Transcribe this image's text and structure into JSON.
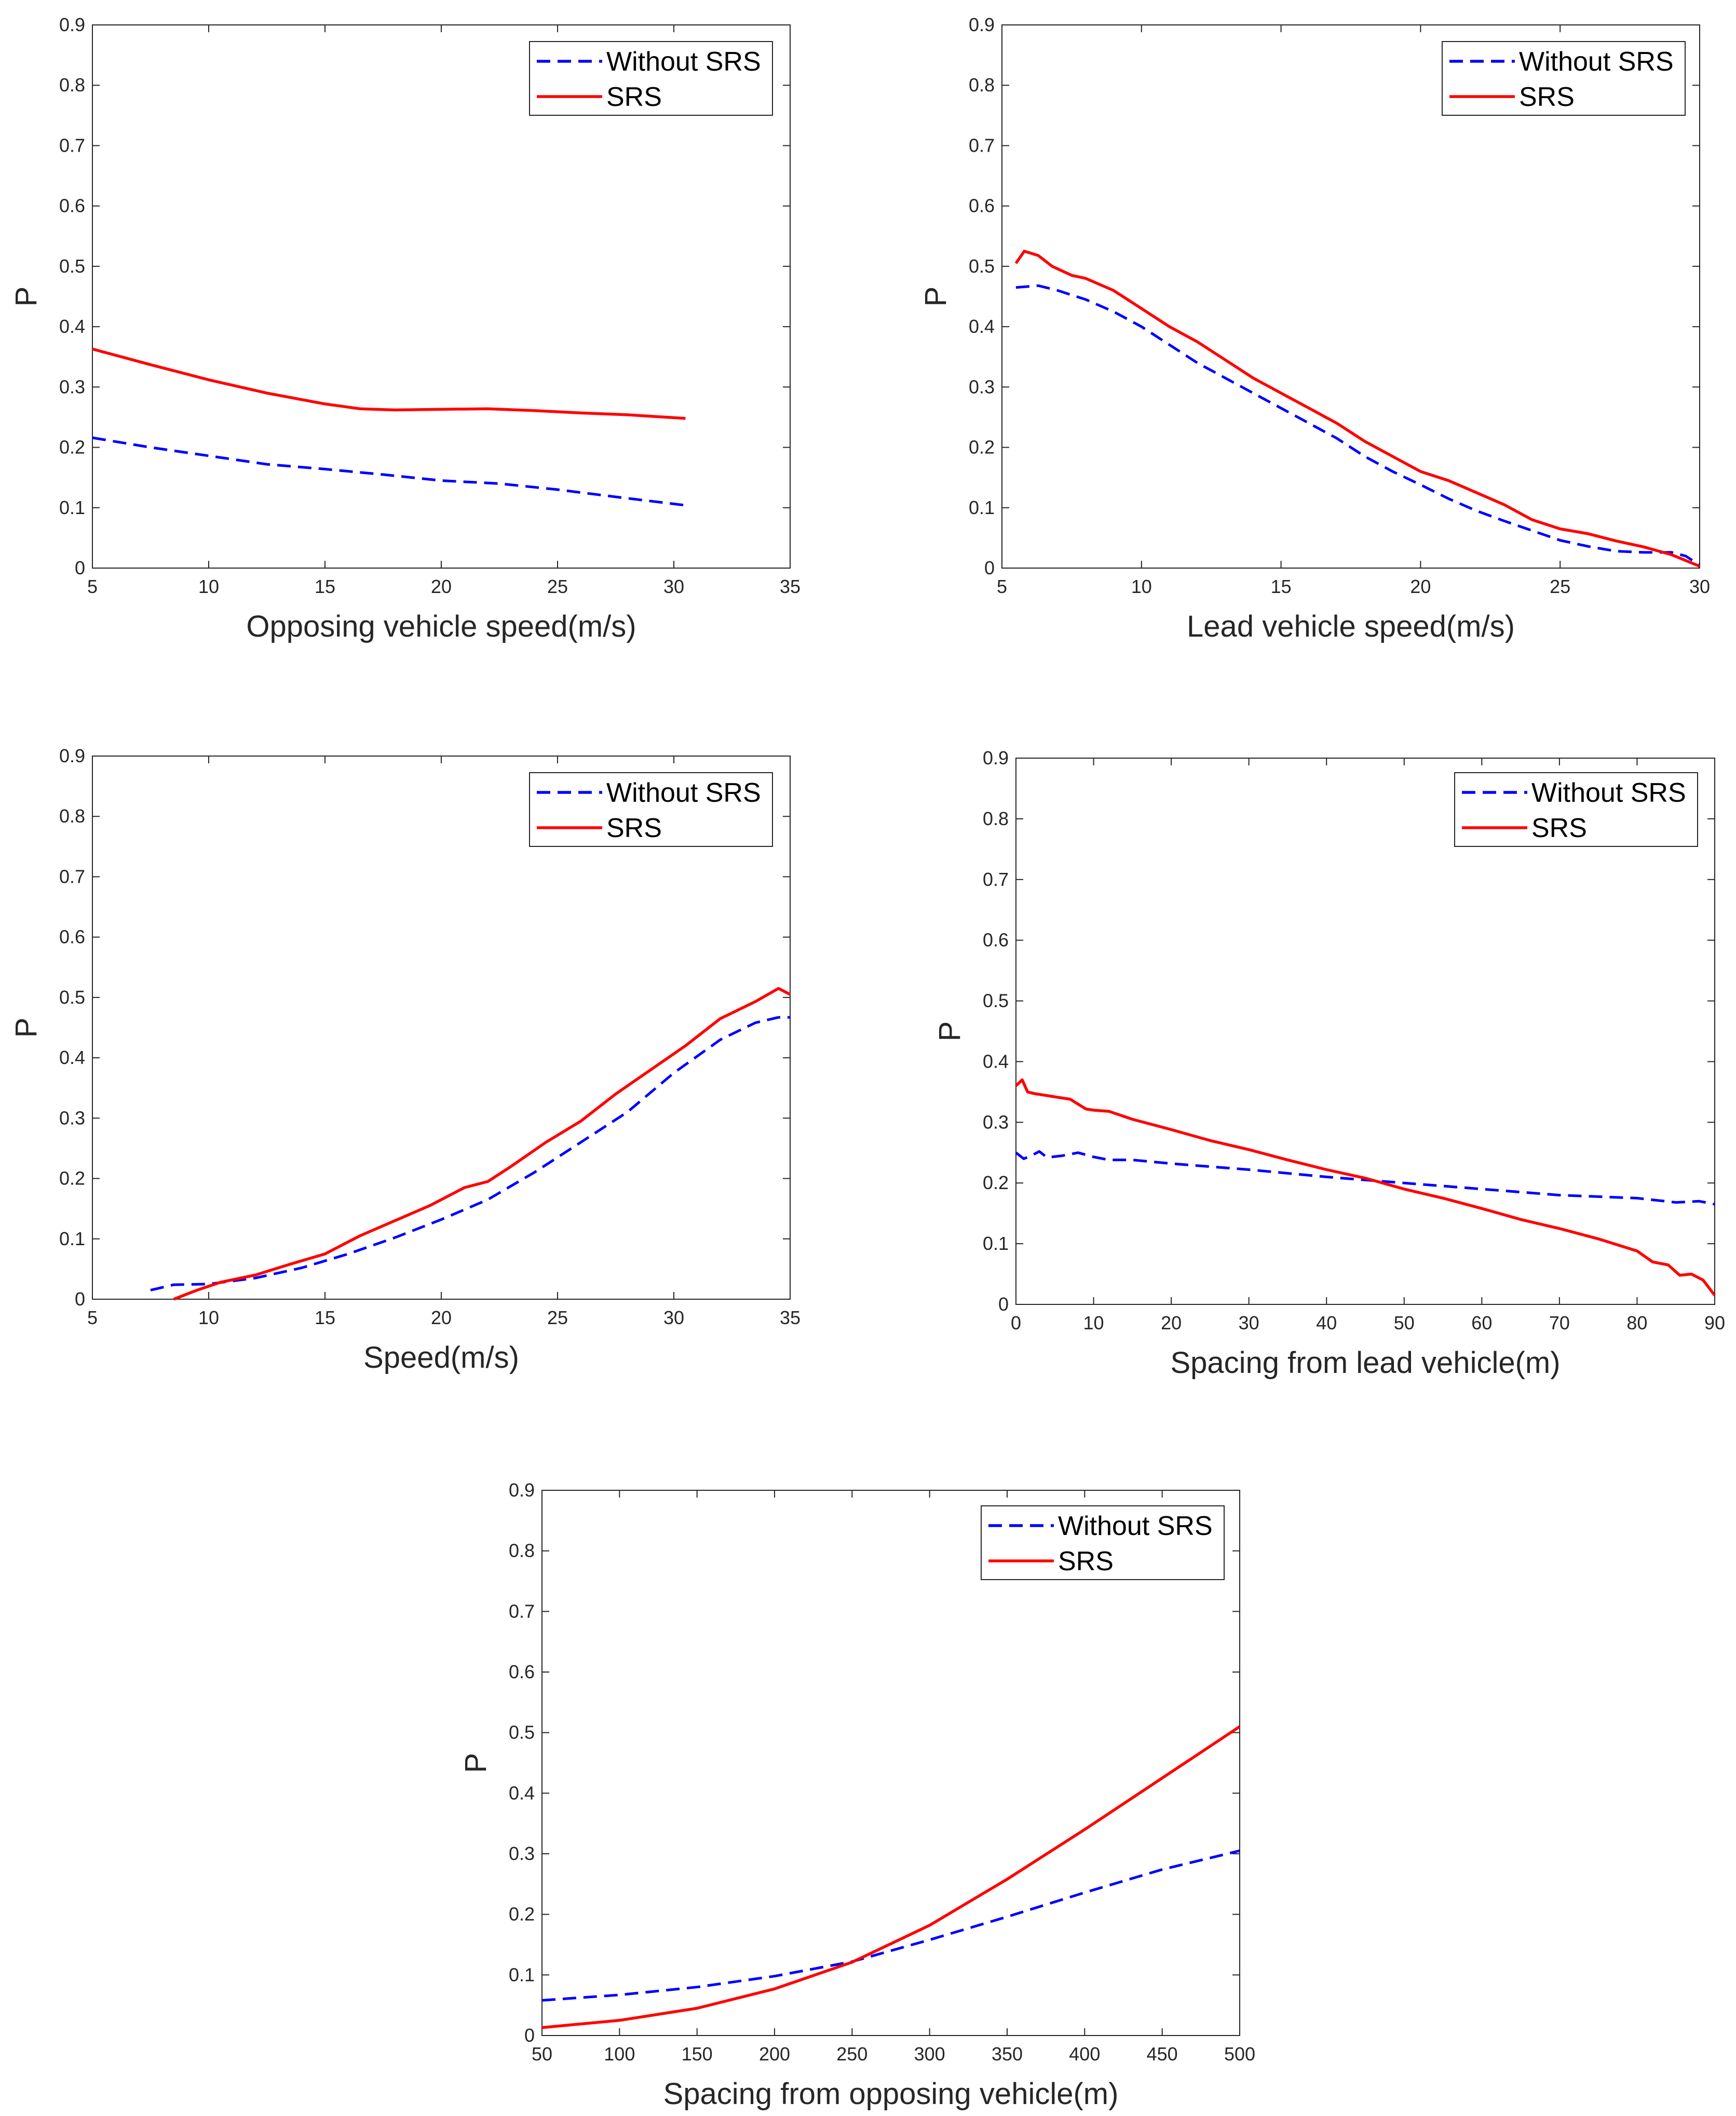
{
  "colors": {
    "without_srs": "#0000ff",
    "srs": "#ff0000",
    "axis": "#262626",
    "background": "#ffffff"
  },
  "chart_data": [
    {
      "id": "opposing-speed",
      "type": "line",
      "xlabel": "Opposing vehicle speed(m/s)",
      "ylabel": "P",
      "xlim": [
        5,
        35
      ],
      "ylim": [
        0,
        0.9
      ],
      "xticks": [
        "5",
        "10",
        "15",
        "20",
        "25",
        "30",
        "35"
      ],
      "yticks": [
        "0",
        "0.1",
        "0.2",
        "0.3",
        "0.4",
        "0.5",
        "0.6",
        "0.7",
        "0.8",
        "0.9"
      ],
      "legend_position": "top-right",
      "series": [
        {
          "name": "Without SRS",
          "style": "dashed",
          "x": [
            5,
            7.5,
            10,
            12.5,
            15,
            17.5,
            20,
            22.5,
            25,
            27.5,
            30.5
          ],
          "y": [
            0.216,
            0.2,
            0.186,
            0.172,
            0.164,
            0.155,
            0.145,
            0.14,
            0.13,
            0.118,
            0.104
          ]
        },
        {
          "name": "SRS",
          "style": "solid",
          "x": [
            5,
            7.5,
            10,
            12.5,
            15,
            16.5,
            18,
            20,
            22,
            24,
            26,
            28,
            30.5
          ],
          "y": [
            0.363,
            0.337,
            0.312,
            0.29,
            0.272,
            0.264,
            0.262,
            0.263,
            0.264,
            0.261,
            0.257,
            0.254,
            0.248
          ]
        }
      ]
    },
    {
      "id": "lead-speed",
      "type": "line",
      "xlabel": "Lead vehicle speed(m/s)",
      "ylabel": "P",
      "xlim": [
        5,
        30
      ],
      "ylim": [
        0,
        0.9
      ],
      "xticks": [
        "5",
        "10",
        "15",
        "20",
        "25",
        "30"
      ],
      "yticks": [
        "0",
        "0.1",
        "0.2",
        "0.3",
        "0.4",
        "0.5",
        "0.6",
        "0.7",
        "0.8",
        "0.9"
      ],
      "legend_position": "top-right",
      "series": [
        {
          "name": "Without SRS",
          "style": "dashed",
          "x": [
            5.5,
            6.3,
            7,
            8,
            9,
            10,
            11,
            12,
            13,
            14,
            15,
            16,
            17,
            18,
            19,
            20,
            21,
            22,
            23,
            24,
            25,
            26,
            27,
            28,
            29,
            29.5,
            30
          ],
          "y": [
            0.465,
            0.468,
            0.46,
            0.445,
            0.425,
            0.4,
            0.37,
            0.34,
            0.315,
            0.29,
            0.265,
            0.24,
            0.215,
            0.185,
            0.16,
            0.138,
            0.115,
            0.095,
            0.078,
            0.062,
            0.046,
            0.036,
            0.028,
            0.026,
            0.026,
            0.02,
            0.005
          ]
        },
        {
          "name": "SRS",
          "style": "solid",
          "x": [
            5.5,
            5.8,
            6.3,
            6.8,
            7.5,
            8,
            9,
            10,
            11,
            12,
            13,
            14,
            15,
            16,
            17,
            18,
            19,
            20,
            21,
            22,
            23,
            24,
            25,
            26,
            27,
            28,
            29,
            30
          ],
          "y": [
            0.505,
            0.525,
            0.518,
            0.5,
            0.485,
            0.48,
            0.46,
            0.43,
            0.4,
            0.375,
            0.345,
            0.315,
            0.29,
            0.265,
            0.24,
            0.21,
            0.185,
            0.16,
            0.145,
            0.125,
            0.105,
            0.08,
            0.065,
            0.057,
            0.045,
            0.035,
            0.022,
            0.003
          ]
        }
      ]
    },
    {
      "id": "speed",
      "type": "line",
      "xlabel": "Speed(m/s)",
      "ylabel": "P",
      "xlim": [
        5,
        35
      ],
      "ylim": [
        0,
        0.9
      ],
      "xticks": [
        "5",
        "10",
        "15",
        "20",
        "25",
        "30",
        "35"
      ],
      "yticks": [
        "0",
        "0.1",
        "0.2",
        "0.3",
        "0.4",
        "0.5",
        "0.6",
        "0.7",
        "0.8",
        "0.9"
      ],
      "legend_position": "top-right",
      "series": [
        {
          "name": "Without SRS",
          "style": "dashed",
          "x": [
            7.5,
            8.5,
            10,
            12,
            14,
            16,
            18,
            20,
            22,
            24,
            26,
            28,
            30,
            32,
            33.5,
            34.5,
            35
          ],
          "y": [
            0.015,
            0.024,
            0.025,
            0.035,
            0.052,
            0.075,
            0.102,
            0.132,
            0.165,
            0.21,
            0.26,
            0.31,
            0.375,
            0.43,
            0.458,
            0.467,
            0.467
          ]
        },
        {
          "name": "SRS",
          "style": "solid",
          "x": [
            8.5,
            9.5,
            10.5,
            12,
            13.5,
            15,
            16.5,
            18,
            19.5,
            21,
            22,
            23,
            24.5,
            26,
            27.5,
            29,
            30.5,
            32,
            33.5,
            34.5,
            35
          ],
          "y": [
            0.0,
            0.015,
            0.028,
            0.04,
            0.058,
            0.075,
            0.105,
            0.13,
            0.155,
            0.185,
            0.195,
            0.22,
            0.26,
            0.295,
            0.34,
            0.38,
            0.42,
            0.465,
            0.493,
            0.515,
            0.505
          ]
        }
      ]
    },
    {
      "id": "lead-spacing",
      "type": "line",
      "xlabel": "Spacing from lead vehicle(m)",
      "ylabel": "P",
      "xlim": [
        0,
        90
      ],
      "ylim": [
        0,
        0.9
      ],
      "xticks": [
        "0",
        "10",
        "20",
        "30",
        "40",
        "50",
        "60",
        "70",
        "80",
        "90"
      ],
      "yticks": [
        "0",
        "0.1",
        "0.2",
        "0.3",
        "0.4",
        "0.5",
        "0.6",
        "0.7",
        "0.8",
        "0.9"
      ],
      "legend_position": "top-right",
      "series": [
        {
          "name": "Without SRS",
          "style": "dashed",
          "x": [
            0,
            1,
            2,
            3,
            4,
            6,
            8,
            10,
            12,
            15,
            20,
            30,
            40,
            50,
            60,
            70,
            80,
            85,
            88,
            90
          ],
          "y": [
            0.25,
            0.24,
            0.245,
            0.252,
            0.242,
            0.245,
            0.25,
            0.243,
            0.238,
            0.238,
            0.232,
            0.222,
            0.21,
            0.2,
            0.19,
            0.18,
            0.175,
            0.168,
            0.17,
            0.165
          ]
        },
        {
          "name": "SRS",
          "style": "solid",
          "x": [
            0,
            0.8,
            1.5,
            2.5,
            4,
            6,
            7,
            8,
            9,
            10,
            12,
            15,
            20,
            25,
            30,
            35,
            40,
            45,
            50,
            55,
            60,
            65,
            70,
            75,
            80,
            82,
            84,
            85.5,
            87,
            88.5,
            90
          ],
          "y": [
            0.36,
            0.37,
            0.35,
            0.347,
            0.344,
            0.34,
            0.338,
            0.33,
            0.322,
            0.32,
            0.318,
            0.305,
            0.288,
            0.27,
            0.255,
            0.238,
            0.222,
            0.208,
            0.19,
            0.175,
            0.158,
            0.14,
            0.125,
            0.108,
            0.088,
            0.07,
            0.065,
            0.048,
            0.05,
            0.04,
            0.015
          ]
        }
      ]
    },
    {
      "id": "opposing-spacing",
      "type": "line",
      "xlabel": "Spacing from opposing vehicle(m)",
      "ylabel": "P",
      "xlim": [
        50,
        500
      ],
      "ylim": [
        0,
        0.9
      ],
      "xticks": [
        "50",
        "100",
        "150",
        "200",
        "250",
        "300",
        "350",
        "400",
        "450",
        "500"
      ],
      "yticks": [
        "0",
        "0.1",
        "0.2",
        "0.3",
        "0.4",
        "0.5",
        "0.6",
        "0.7",
        "0.8",
        "0.9"
      ],
      "legend_position": "top-right",
      "series": [
        {
          "name": "Without SRS",
          "style": "dashed",
          "x": [
            50,
            100,
            150,
            200,
            250,
            300,
            350,
            400,
            450,
            500
          ],
          "y": [
            0.058,
            0.067,
            0.08,
            0.098,
            0.122,
            0.158,
            0.196,
            0.236,
            0.274,
            0.305
          ]
        },
        {
          "name": "SRS",
          "style": "solid",
          "x": [
            50,
            100,
            150,
            200,
            250,
            300,
            350,
            400,
            450,
            500
          ],
          "y": [
            0.013,
            0.025,
            0.045,
            0.077,
            0.121,
            0.182,
            0.258,
            0.34,
            0.425,
            0.51
          ]
        }
      ]
    }
  ]
}
